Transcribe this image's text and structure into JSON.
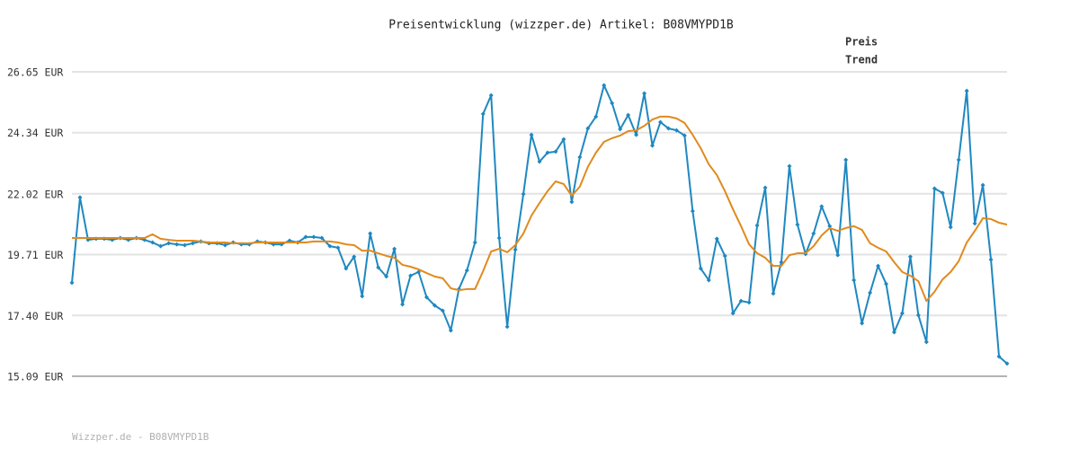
{
  "chart_data": {
    "type": "line",
    "title": "Preisentwicklung (wizzper.de) Artikel: B08VMYPD1B",
    "footer": "Wizzper.de - B08VMYPD1B",
    "ylim": [
      15.09,
      26.65
    ],
    "yticks": [
      {
        "value": 15.09,
        "label": "15.09 EUR"
      },
      {
        "value": 17.4,
        "label": "17.40 EUR"
      },
      {
        "value": 19.71,
        "label": "19.71 EUR"
      },
      {
        "value": 22.02,
        "label": "22.02 EUR"
      },
      {
        "value": 24.34,
        "label": "24.34 EUR"
      },
      {
        "value": 26.65,
        "label": "26.65 EUR"
      }
    ],
    "grid": true,
    "legend": "top-right",
    "series": [
      {
        "name": "Preis",
        "color": "#1f88c0",
        "markers": true,
        "values": [
          18.64,
          21.88,
          20.27,
          20.31,
          20.31,
          20.27,
          20.34,
          20.27,
          20.34,
          20.27,
          20.17,
          20.03,
          20.14,
          20.1,
          20.07,
          20.14,
          20.21,
          20.14,
          20.14,
          20.07,
          20.17,
          20.1,
          20.1,
          20.21,
          20.17,
          20.1,
          20.1,
          20.24,
          20.17,
          20.38,
          20.38,
          20.34,
          20.03,
          19.97,
          19.18,
          19.63,
          18.13,
          20.51,
          19.22,
          18.88,
          19.93,
          17.82,
          18.91,
          19.05,
          18.09,
          17.78,
          17.58,
          16.83,
          18.4,
          19.11,
          20.17,
          25.05,
          25.76,
          20.34,
          16.97,
          19.9,
          22.01,
          24.26,
          23.24,
          23.58,
          23.62,
          24.09,
          21.71,
          23.41,
          24.5,
          24.95,
          26.14,
          25.46,
          24.47,
          25.01,
          24.26,
          25.83,
          23.85,
          24.74,
          24.5,
          24.43,
          24.23,
          21.36,
          19.18,
          18.74,
          20.31,
          19.66,
          17.48,
          17.95,
          17.89,
          20.82,
          22.25,
          18.23,
          19.42,
          23.07,
          20.85,
          19.73,
          20.51,
          21.54,
          20.79,
          19.69,
          23.31,
          18.74,
          17.1,
          18.26,
          19.28,
          18.6,
          16.76,
          17.48,
          19.63,
          17.41,
          16.39,
          22.22,
          22.05,
          20.75,
          23.31,
          25.93,
          20.89,
          22.35,
          19.52,
          15.84,
          15.57
        ]
      },
      {
        "name": "Trend",
        "color": "#e08a1e",
        "markers": false,
        "values": [
          20.34,
          20.34,
          20.34,
          20.34,
          20.34,
          20.34,
          20.34,
          20.34,
          20.34,
          20.34,
          20.48,
          20.31,
          20.27,
          20.24,
          20.24,
          20.24,
          20.21,
          20.17,
          20.17,
          20.17,
          20.14,
          20.14,
          20.14,
          20.17,
          20.17,
          20.17,
          20.17,
          20.17,
          20.17,
          20.17,
          20.21,
          20.21,
          20.21,
          20.17,
          20.1,
          20.07,
          19.86,
          19.86,
          19.76,
          19.66,
          19.59,
          19.32,
          19.25,
          19.15,
          19.01,
          18.88,
          18.81,
          18.43,
          18.36,
          18.4,
          18.4,
          19.08,
          19.83,
          19.93,
          19.8,
          20.07,
          20.51,
          21.19,
          21.67,
          22.12,
          22.49,
          22.39,
          21.94,
          22.29,
          23.04,
          23.58,
          23.99,
          24.13,
          24.23,
          24.4,
          24.43,
          24.6,
          24.84,
          24.95,
          24.95,
          24.88,
          24.71,
          24.26,
          23.75,
          23.14,
          22.73,
          22.12,
          21.43,
          20.79,
          20.1,
          19.76,
          19.59,
          19.28,
          19.28,
          19.69,
          19.76,
          19.76,
          20.03,
          20.44,
          20.72,
          20.61,
          20.72,
          20.79,
          20.65,
          20.14,
          19.97,
          19.83,
          19.42,
          19.05,
          18.91,
          18.7,
          17.95,
          18.3,
          18.77,
          19.05,
          19.46,
          20.17,
          20.61,
          21.09,
          21.06,
          20.92,
          20.85
        ]
      }
    ]
  }
}
